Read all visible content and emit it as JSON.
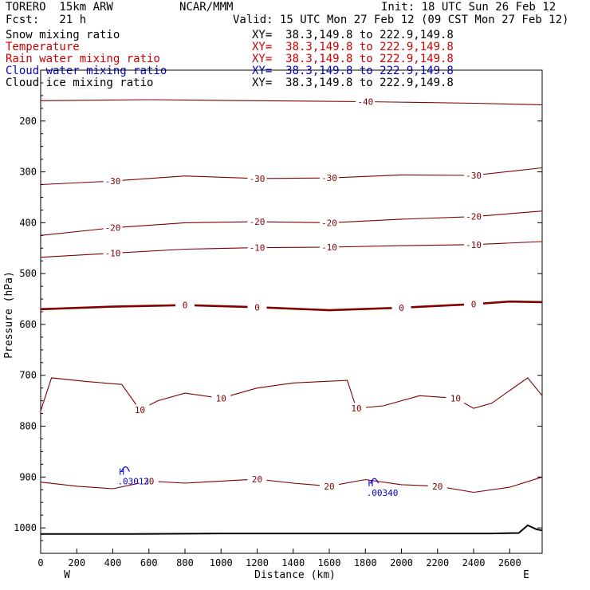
{
  "header": {
    "model": "TORERO  15km ARW",
    "center": "NCAR/MMM",
    "init": "Init: 18 UTC Sun 26 Feb 12",
    "fcst": "Fcst:   21 h",
    "valid": "Valid: 15 UTC Mon 27 Feb 12 (09 CST Mon 27 Feb 12)"
  },
  "legend": [
    {
      "label": "Snow mixing ratio",
      "xy": "XY=  38.3,149.8 to 222.9,149.8",
      "color": "#000000"
    },
    {
      "label": "Temperature",
      "xy": "XY=  38.3,149.8 to 222.9,149.8",
      "color": "#cc0000"
    },
    {
      "label": "Rain water mixing ratio",
      "xy": "XY=  38.3,149.8 to 222.9,149.8",
      "color": "#cc0000"
    },
    {
      "label": "Cloud water mixing ratio",
      "xy": "XY=  38.3,149.8 to 222.9,149.8",
      "color": "#0000cc"
    },
    {
      "label": "Cloud ice mixing ratio",
      "xy": "XY=  38.3,149.8 to 222.9,149.8",
      "color": "#000000"
    }
  ],
  "colors": {
    "temperature": "#800000",
    "cloud_water": "#0000cc",
    "terrain": "#000000"
  },
  "chart_data": {
    "type": "line",
    "title": "",
    "xlabel": "Distance (km)",
    "ylabel": "Pressure (hPa)",
    "xlim": [
      0,
      2780
    ],
    "ylim": [
      1050,
      100
    ],
    "x_ticks": [
      0,
      200,
      400,
      600,
      800,
      1000,
      1200,
      1400,
      1600,
      1800,
      2000,
      2200,
      2400,
      2600
    ],
    "y_ticks": [
      200,
      300,
      400,
      500,
      600,
      700,
      800,
      900,
      1000
    ],
    "x_end_labels": {
      "left": "W",
      "right": "E"
    },
    "series": [
      {
        "name": "Temperature",
        "contours": [
          {
            "level": -40,
            "labels": [
              "-40"
            ],
            "points": [
              [
                0,
                160
              ],
              [
                600,
                158
              ],
              [
                1200,
                160
              ],
              [
                1800,
                162
              ],
              [
                2400,
                165
              ],
              [
                2780,
                168
              ]
            ]
          },
          {
            "level": -30,
            "labels": [
              "-30",
              "-30",
              "-30",
              "-30"
            ],
            "points": [
              [
                0,
                325
              ],
              [
                400,
                318
              ],
              [
                800,
                308
              ],
              [
                1200,
                313
              ],
              [
                1600,
                312
              ],
              [
                2000,
                306
              ],
              [
                2400,
                307
              ],
              [
                2780,
                292
              ]
            ]
          },
          {
            "level": -20,
            "labels": [
              "-20",
              "-20",
              "-20",
              "-20"
            ],
            "points": [
              [
                0,
                425
              ],
              [
                400,
                410
              ],
              [
                800,
                400
              ],
              [
                1200,
                398
              ],
              [
                1600,
                400
              ],
              [
                2000,
                393
              ],
              [
                2400,
                388
              ],
              [
                2780,
                377
              ]
            ]
          },
          {
            "level": -10,
            "labels": [
              "-10",
              "-10",
              "-10",
              "-10"
            ],
            "points": [
              [
                0,
                468
              ],
              [
                400,
                460
              ],
              [
                800,
                452
              ],
              [
                1200,
                449
              ],
              [
                1600,
                448
              ],
              [
                2000,
                445
              ],
              [
                2400,
                443
              ],
              [
                2780,
                437
              ]
            ]
          },
          {
            "level": 0,
            "labels": [
              "0",
              "0",
              "0",
              "0"
            ],
            "points": [
              [
                0,
                570
              ],
              [
                400,
                565
              ],
              [
                800,
                562
              ],
              [
                1200,
                566
              ],
              [
                1600,
                572
              ],
              [
                2000,
                567
              ],
              [
                2400,
                560
              ],
              [
                2600,
                555
              ],
              [
                2780,
                556
              ]
            ]
          },
          {
            "level": 10,
            "labels": [
              "10",
              "10",
              "10",
              "10"
            ],
            "points": [
              [
                0,
                770
              ],
              [
                60,
                705
              ],
              [
                250,
                712
              ],
              [
                450,
                718
              ],
              [
                550,
                768
              ],
              [
                650,
                750
              ],
              [
                800,
                735
              ],
              [
                1000,
                745
              ],
              [
                1200,
                725
              ],
              [
                1400,
                715
              ],
              [
                1700,
                710
              ],
              [
                1750,
                765
              ],
              [
                1900,
                760
              ],
              [
                2100,
                740
              ],
              [
                2300,
                745
              ],
              [
                2400,
                765
              ],
              [
                2500,
                755
              ],
              [
                2700,
                705
              ],
              [
                2780,
                740
              ]
            ]
          },
          {
            "level": 20,
            "labels": [
              "20",
              "20",
              "20",
              "20"
            ],
            "points": [
              [
                0,
                910
              ],
              [
                200,
                918
              ],
              [
                400,
                923
              ],
              [
                600,
                908
              ],
              [
                800,
                912
              ],
              [
                1000,
                908
              ],
              [
                1200,
                904
              ],
              [
                1400,
                912
              ],
              [
                1600,
                918
              ],
              [
                1800,
                905
              ],
              [
                2000,
                915
              ],
              [
                2200,
                918
              ],
              [
                2400,
                930
              ],
              [
                2600,
                920
              ],
              [
                2780,
                900
              ]
            ]
          }
        ]
      },
      {
        "name": "Cloud water mixing ratio",
        "maxima": [
          {
            "x": 470,
            "p": 905,
            "value": ".03013",
            "flag": "H"
          },
          {
            "x": 1850,
            "p": 928,
            "value": ".00340",
            "flag": "H"
          }
        ]
      }
    ]
  }
}
